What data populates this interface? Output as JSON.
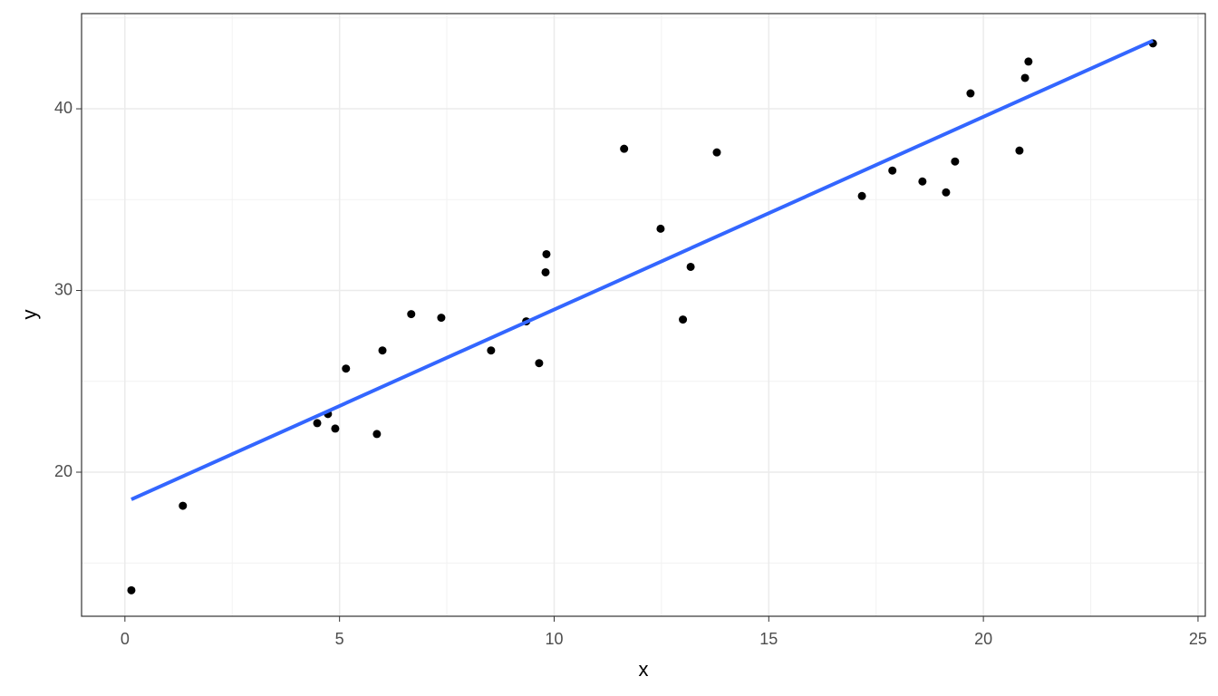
{
  "chart_data": {
    "type": "scatter",
    "x_label": "x",
    "y_label": "y",
    "x": [
      0.15,
      1.35,
      4.48,
      4.73,
      4.9,
      5.15,
      5.87,
      6.0,
      6.67,
      7.37,
      8.53,
      9.35,
      9.65,
      9.8,
      9.82,
      11.63,
      12.48,
      13.0,
      13.18,
      13.79,
      17.17,
      17.88,
      18.58,
      19.13,
      19.34,
      19.7,
      20.84,
      20.97,
      21.05,
      23.95
    ],
    "values": [
      13.5,
      18.15,
      22.7,
      23.2,
      22.4,
      25.7,
      22.1,
      26.7,
      28.7,
      28.5,
      26.7,
      28.3,
      26.0,
      31.0,
      32.0,
      37.8,
      33.4,
      28.4,
      31.3,
      37.6,
      35.2,
      36.6,
      36.0,
      35.4,
      37.1,
      40.85,
      37.7,
      41.7,
      42.6,
      43.6
    ],
    "color": "#000000",
    "trend_line": {
      "x": [
        0.15,
        23.95
      ],
      "y": [
        18.5,
        43.75
      ],
      "color": "#3366ff"
    },
    "xlim": [
      -1.01,
      25.17
    ],
    "ylim": [
      12.07,
      45.24
    ],
    "xticks": [
      0,
      5,
      10,
      15,
      20,
      25
    ],
    "yticks": [
      20,
      30,
      40
    ],
    "x_minor_grid": [
      2.5,
      7.5,
      12.5,
      17.5,
      22.5
    ],
    "y_minor_grid": [
      15,
      25,
      35,
      45
    ],
    "grid": true
  }
}
